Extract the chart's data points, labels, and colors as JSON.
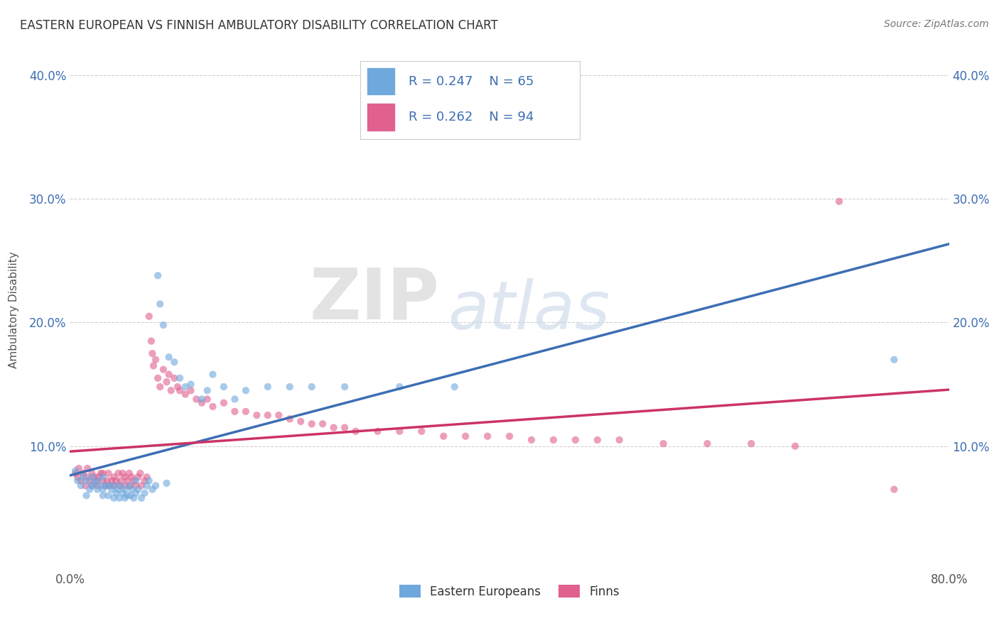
{
  "title": "EASTERN EUROPEAN VS FINNISH AMBULATORY DISABILITY CORRELATION CHART",
  "source_text": "Source: ZipAtlas.com",
  "ylabel": "Ambulatory Disability",
  "xlabel": "",
  "xlim": [
    0.0,
    0.8
  ],
  "ylim": [
    0.0,
    0.42
  ],
  "xtick_positions": [
    0.0,
    0.1,
    0.2,
    0.3,
    0.4,
    0.5,
    0.6,
    0.7,
    0.8
  ],
  "xtick_labels": [
    "0.0%",
    "",
    "",
    "",
    "",
    "",
    "",
    "",
    "80.0%"
  ],
  "ytick_positions": [
    0.0,
    0.1,
    0.2,
    0.3,
    0.4
  ],
  "ytick_labels_left": [
    "",
    "10.0%",
    "20.0%",
    "30.0%",
    "40.0%"
  ],
  "ytick_labels_right": [
    "",
    "10.0%",
    "20.0%",
    "30.0%",
    "40.0%"
  ],
  "blue_color": "#6fa8dc",
  "pink_color": "#e06090",
  "trendline_blue": "#3c6eb4",
  "trendline_pink": "#cc3366",
  "legend_r_blue": "R = 0.247",
  "legend_n_blue": "N = 65",
  "legend_r_pink": "R = 0.262",
  "legend_n_pink": "N = 94",
  "label_blue": "Eastern Europeans",
  "label_pink": "Finns",
  "watermark_zip": "ZIP",
  "watermark_atlas": "atlas",
  "blue_scatter_x": [
    0.005,
    0.007,
    0.01,
    0.012,
    0.015,
    0.015,
    0.018,
    0.02,
    0.02,
    0.022,
    0.025,
    0.025,
    0.028,
    0.03,
    0.03,
    0.03,
    0.033,
    0.035,
    0.035,
    0.038,
    0.04,
    0.04,
    0.042,
    0.044,
    0.045,
    0.046,
    0.048,
    0.05,
    0.05,
    0.052,
    0.054,
    0.055,
    0.056,
    0.058,
    0.06,
    0.06,
    0.062,
    0.065,
    0.068,
    0.07,
    0.072,
    0.075,
    0.078,
    0.08,
    0.082,
    0.085,
    0.088,
    0.09,
    0.095,
    0.1,
    0.105,
    0.11,
    0.12,
    0.125,
    0.13,
    0.14,
    0.15,
    0.16,
    0.18,
    0.2,
    0.22,
    0.25,
    0.3,
    0.35,
    0.75
  ],
  "blue_scatter_y": [
    0.08,
    0.072,
    0.068,
    0.075,
    0.06,
    0.072,
    0.065,
    0.068,
    0.075,
    0.07,
    0.065,
    0.072,
    0.068,
    0.06,
    0.065,
    0.075,
    0.068,
    0.06,
    0.068,
    0.065,
    0.058,
    0.068,
    0.062,
    0.065,
    0.058,
    0.068,
    0.062,
    0.058,
    0.065,
    0.06,
    0.068,
    0.06,
    0.065,
    0.058,
    0.062,
    0.072,
    0.065,
    0.058,
    0.062,
    0.068,
    0.072,
    0.065,
    0.068,
    0.238,
    0.215,
    0.198,
    0.07,
    0.172,
    0.168,
    0.155,
    0.148,
    0.15,
    0.138,
    0.145,
    0.158,
    0.148,
    0.138,
    0.145,
    0.148,
    0.148,
    0.148,
    0.148,
    0.148,
    0.148,
    0.17
  ],
  "pink_scatter_x": [
    0.005,
    0.007,
    0.008,
    0.01,
    0.012,
    0.014,
    0.015,
    0.016,
    0.018,
    0.02,
    0.02,
    0.022,
    0.024,
    0.025,
    0.026,
    0.028,
    0.03,
    0.03,
    0.032,
    0.034,
    0.035,
    0.036,
    0.038,
    0.04,
    0.04,
    0.042,
    0.044,
    0.045,
    0.046,
    0.048,
    0.05,
    0.05,
    0.052,
    0.054,
    0.055,
    0.056,
    0.058,
    0.06,
    0.062,
    0.064,
    0.065,
    0.068,
    0.07,
    0.072,
    0.074,
    0.075,
    0.076,
    0.078,
    0.08,
    0.082,
    0.085,
    0.088,
    0.09,
    0.092,
    0.095,
    0.098,
    0.1,
    0.105,
    0.11,
    0.115,
    0.12,
    0.125,
    0.13,
    0.14,
    0.15,
    0.16,
    0.17,
    0.18,
    0.19,
    0.2,
    0.21,
    0.22,
    0.23,
    0.24,
    0.25,
    0.26,
    0.28,
    0.3,
    0.32,
    0.34,
    0.36,
    0.38,
    0.4,
    0.42,
    0.44,
    0.46,
    0.48,
    0.5,
    0.54,
    0.58,
    0.62,
    0.66,
    0.7,
    0.75
  ],
  "pink_scatter_y": [
    0.078,
    0.075,
    0.082,
    0.072,
    0.078,
    0.068,
    0.075,
    0.082,
    0.072,
    0.068,
    0.078,
    0.075,
    0.072,
    0.068,
    0.075,
    0.078,
    0.072,
    0.078,
    0.068,
    0.072,
    0.078,
    0.068,
    0.072,
    0.068,
    0.075,
    0.072,
    0.078,
    0.068,
    0.072,
    0.078,
    0.068,
    0.075,
    0.072,
    0.078,
    0.068,
    0.075,
    0.072,
    0.068,
    0.075,
    0.078,
    0.068,
    0.072,
    0.075,
    0.205,
    0.185,
    0.175,
    0.165,
    0.17,
    0.155,
    0.148,
    0.162,
    0.152,
    0.158,
    0.145,
    0.155,
    0.148,
    0.145,
    0.142,
    0.145,
    0.138,
    0.135,
    0.138,
    0.132,
    0.135,
    0.128,
    0.128,
    0.125,
    0.125,
    0.125,
    0.122,
    0.12,
    0.118,
    0.118,
    0.115,
    0.115,
    0.112,
    0.112,
    0.112,
    0.112,
    0.108,
    0.108,
    0.108,
    0.108,
    0.105,
    0.105,
    0.105,
    0.105,
    0.105,
    0.102,
    0.102,
    0.102,
    0.1,
    0.298,
    0.065
  ]
}
